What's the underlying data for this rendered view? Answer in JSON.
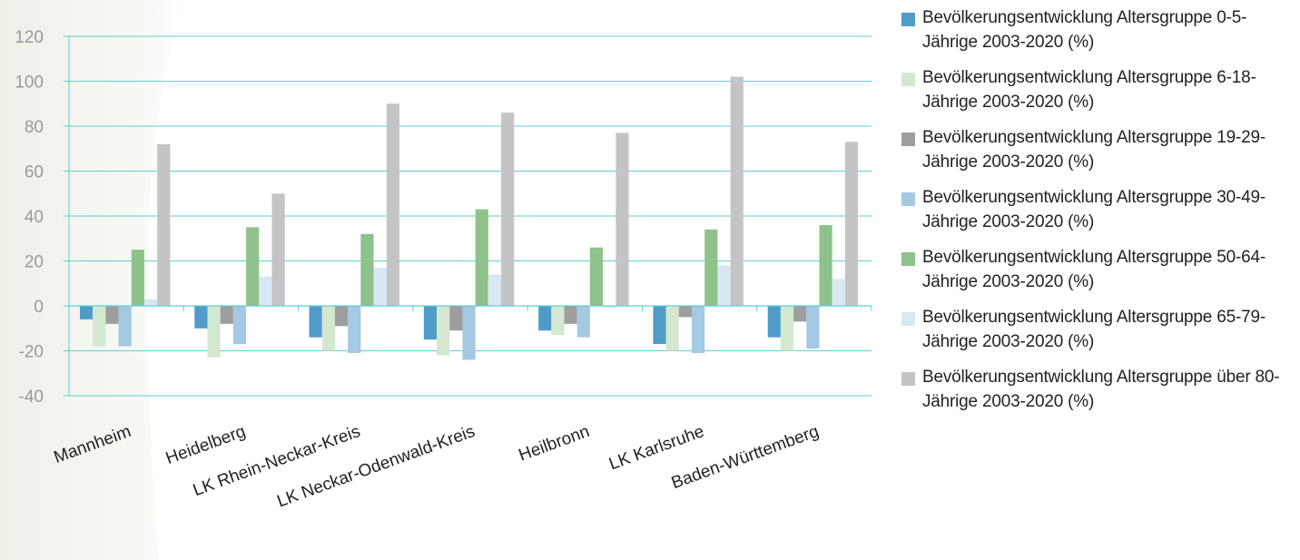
{
  "chart_data": {
    "type": "bar",
    "categories": [
      "Mannheim",
      "Heidelberg",
      "LK Rhein-Neckar-Kreis",
      "LK Neckar-Odenwald-Kreis",
      "Heilbronn",
      "LK Karlsruhe",
      "Baden-Württemberg"
    ],
    "ylim": [
      -40,
      120
    ],
    "yticks": [
      120,
      100,
      80,
      60,
      40,
      20,
      0,
      -20,
      -40
    ],
    "grid": true,
    "legend_position": "right",
    "series": [
      {
        "name": "Bevölkerungsentwicklung Altersgruppe 0-5-Jährige 2003-2020 (%)",
        "color": "#4f9cc9",
        "values": [
          -6,
          -10,
          -14,
          -15,
          -11,
          -17,
          -14
        ]
      },
      {
        "name": "Bevölkerungsentwicklung Altersgruppe 6-18-Jährige 2003-2020 (%)",
        "color": "#d3e8cf",
        "values": [
          -18,
          -23,
          -20,
          -22,
          -13,
          -20,
          -20
        ]
      },
      {
        "name": "Bevölkerungsentwicklung Altersgruppe 19-29-Jährige 2003-2020 (%)",
        "color": "#9e9e9e",
        "values": [
          -8,
          -8,
          -9,
          -11,
          -8,
          -5,
          -7
        ]
      },
      {
        "name": "Bevölkerungsentwicklung Altersgruppe 30-49-Jährige 2003-2020 (%)",
        "color": "#a4c9e2",
        "values": [
          -18,
          -17,
          -21,
          -24,
          -14,
          -21,
          -19
        ]
      },
      {
        "name": "Bevölkerungsentwicklung Altersgruppe 50-64-Jährige 2003-2020 (%)",
        "color": "#8fc18a",
        "values": [
          25,
          35,
          32,
          43,
          26,
          34,
          36
        ]
      },
      {
        "name": "Bevölkerungsentwicklung Altersgruppe 65-79-Jährige 2003-2020 (%)",
        "color": "#d8e8f3",
        "values": [
          3,
          13,
          17,
          14,
          -1,
          18,
          12
        ]
      },
      {
        "name": "Bevölkerungsentwicklung Altersgruppe über 80-Jährige 2003-2020 (%)",
        "color": "#c4c4c6",
        "values": [
          72,
          50,
          90,
          86,
          77,
          102,
          73
        ]
      }
    ]
  }
}
